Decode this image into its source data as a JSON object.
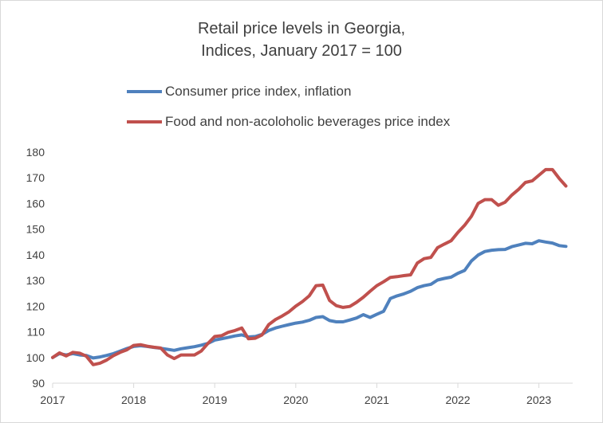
{
  "chart_data": {
    "type": "line",
    "title": "Retail price levels in Georgia,",
    "subtitle": "Indices, January 2017 = 100",
    "xlabel": "",
    "ylabel": "",
    "ylim": [
      90,
      180
    ],
    "yticks": [
      90,
      100,
      110,
      120,
      130,
      140,
      150,
      160,
      170,
      180
    ],
    "xlim": [
      2017.0,
      2023.417
    ],
    "xticks": [
      "2017",
      "2018",
      "2019",
      "2020",
      "2021",
      "2022",
      "2023"
    ],
    "grid": false,
    "legend_position": "top",
    "series": [
      {
        "name": "Consumer price index, inflation",
        "color": "#4f81bd",
        "values": [
          100.0,
          101.5,
          101.0,
          101.5,
          101.0,
          100.8,
          99.8,
          100.2,
          100.8,
          101.5,
          102.5,
          103.5,
          104.3,
          104.6,
          104.3,
          103.9,
          103.6,
          103.2,
          102.8,
          103.4,
          103.8,
          104.2,
          104.8,
          105.5,
          106.8,
          107.3,
          107.8,
          108.4,
          108.8,
          108.0,
          108.2,
          109.0,
          110.5,
          111.5,
          112.2,
          112.8,
          113.4,
          113.8,
          114.5,
          115.6,
          115.9,
          114.4,
          113.9,
          113.9,
          114.6,
          115.4,
          116.7,
          115.6,
          116.8,
          118.0,
          123.0,
          124.0,
          124.8,
          125.8,
          127.2,
          128.0,
          128.5,
          130.2,
          130.8,
          131.3,
          132.8,
          133.9,
          137.6,
          139.9,
          141.3,
          141.8,
          142.0,
          142.1,
          143.2,
          143.8,
          144.5,
          144.3,
          145.5,
          145.0,
          144.6,
          143.6,
          143.3
        ]
      },
      {
        "name": "Food and non-acoloholic beverages price index",
        "color": "#c0504d",
        "values": [
          100.0,
          101.8,
          100.6,
          102.0,
          101.7,
          100.5,
          97.2,
          97.8,
          99.0,
          100.7,
          102.0,
          103.0,
          104.7,
          105.0,
          104.4,
          104.0,
          103.7,
          101.0,
          99.6,
          101.0,
          101.0,
          101.0,
          102.5,
          105.5,
          108.2,
          108.5,
          109.8,
          110.5,
          111.5,
          107.3,
          107.5,
          108.8,
          112.8,
          114.8,
          116.2,
          117.8,
          120.0,
          121.8,
          124.0,
          128.0,
          128.2,
          122.2,
          120.2,
          119.5,
          119.9,
          121.5,
          123.5,
          125.8,
          128.0,
          129.5,
          131.2,
          131.5,
          131.9,
          132.2,
          136.8,
          138.5,
          139.0,
          142.8,
          144.2,
          145.5,
          148.7,
          151.5,
          155.0,
          160.0,
          161.5,
          161.5,
          159.3,
          160.5,
          163.3,
          165.5,
          168.2,
          168.8,
          171.0,
          173.2,
          173.2,
          169.8,
          166.8
        ]
      }
    ]
  }
}
